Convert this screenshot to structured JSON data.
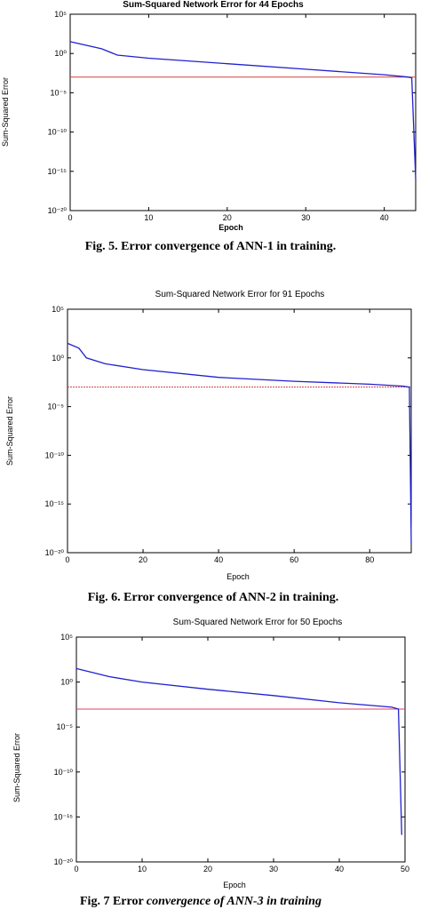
{
  "chart_data": [
    {
      "type": "line",
      "title": "Sum-Squared Network Error for 44 Epochs",
      "xlabel": "Epoch",
      "ylabel": "Sum-Squared Error",
      "xlim": [
        0,
        44
      ],
      "ylim_log10": [
        -20,
        5
      ],
      "xticks": [
        "0",
        "10",
        "20",
        "30",
        "40"
      ],
      "yticks": [
        "10⁵",
        "10⁰",
        "10⁻⁵",
        "10⁻¹⁰",
        "10⁻¹⁵",
        "10⁻²⁰"
      ],
      "caption": "Fig. 5.  Error convergence of ANN-1 in training.",
      "goal_log10": -3,
      "series": [
        {
          "color": "#2020d0",
          "x": [
            0,
            4,
            6,
            10,
            20,
            30,
            40,
            43,
            43.5,
            44
          ],
          "y_log10": [
            1.5,
            0.6,
            -0.2,
            -0.6,
            -1.3,
            -2.0,
            -2.7,
            -3.0,
            -3.1,
            -16
          ]
        }
      ],
      "colors": {
        "error": "#2020d0",
        "goal": "#d04040"
      }
    },
    {
      "type": "line",
      "title": "Sum-Squared Network Error for 91 Epochs",
      "xlabel": "Epoch",
      "ylabel": "Sum-Squared Error",
      "xlim": [
        0,
        91
      ],
      "ylim_log10": [
        -20,
        5
      ],
      "xticks": [
        "0",
        "20",
        "40",
        "60",
        "80"
      ],
      "yticks": [
        "10⁵",
        "10⁰",
        "10⁻⁵",
        "10⁻¹⁰",
        "10⁻¹⁵",
        "10⁻²⁰"
      ],
      "caption": "Fig. 6.  Error convergence of ANN-2 in training.",
      "goal_log10": -3,
      "series": [
        {
          "color": "#2020d0",
          "x": [
            0,
            3,
            5,
            10,
            20,
            40,
            60,
            80,
            89,
            90.5,
            91
          ],
          "y_log10": [
            1.5,
            1.0,
            0.0,
            -0.6,
            -1.2,
            -2.0,
            -2.4,
            -2.7,
            -2.9,
            -3.0,
            -19
          ]
        }
      ],
      "colors": {
        "error": "#2020d0",
        "goal": "#d04040"
      }
    },
    {
      "type": "line",
      "title": "Sum-Squared Network Error for 50 Epochs",
      "xlabel": "Epoch",
      "ylabel": "Sum-Squared Error",
      "xlim": [
        0,
        50
      ],
      "ylim_log10": [
        -20,
        5
      ],
      "xticks": [
        "0",
        "10",
        "20",
        "30",
        "40",
        "50"
      ],
      "yticks": [
        "10⁵",
        "10⁰",
        "10⁻⁵",
        "10⁻¹⁰",
        "10⁻¹⁵",
        "10⁻²⁰"
      ],
      "caption_plain": "Fig. 7 Error ",
      "caption_italic": "convergence of ANN-3 in training",
      "goal_log10": -3,
      "series": [
        {
          "color": "#2020d0",
          "x": [
            0,
            5,
            10,
            20,
            30,
            40,
            48,
            49,
            49.5
          ],
          "y_log10": [
            1.5,
            0.6,
            0.0,
            -0.8,
            -1.5,
            -2.3,
            -2.8,
            -3.0,
            -17
          ]
        }
      ],
      "colors": {
        "error": "#2020d0",
        "goal": "#e04060"
      }
    }
  ]
}
